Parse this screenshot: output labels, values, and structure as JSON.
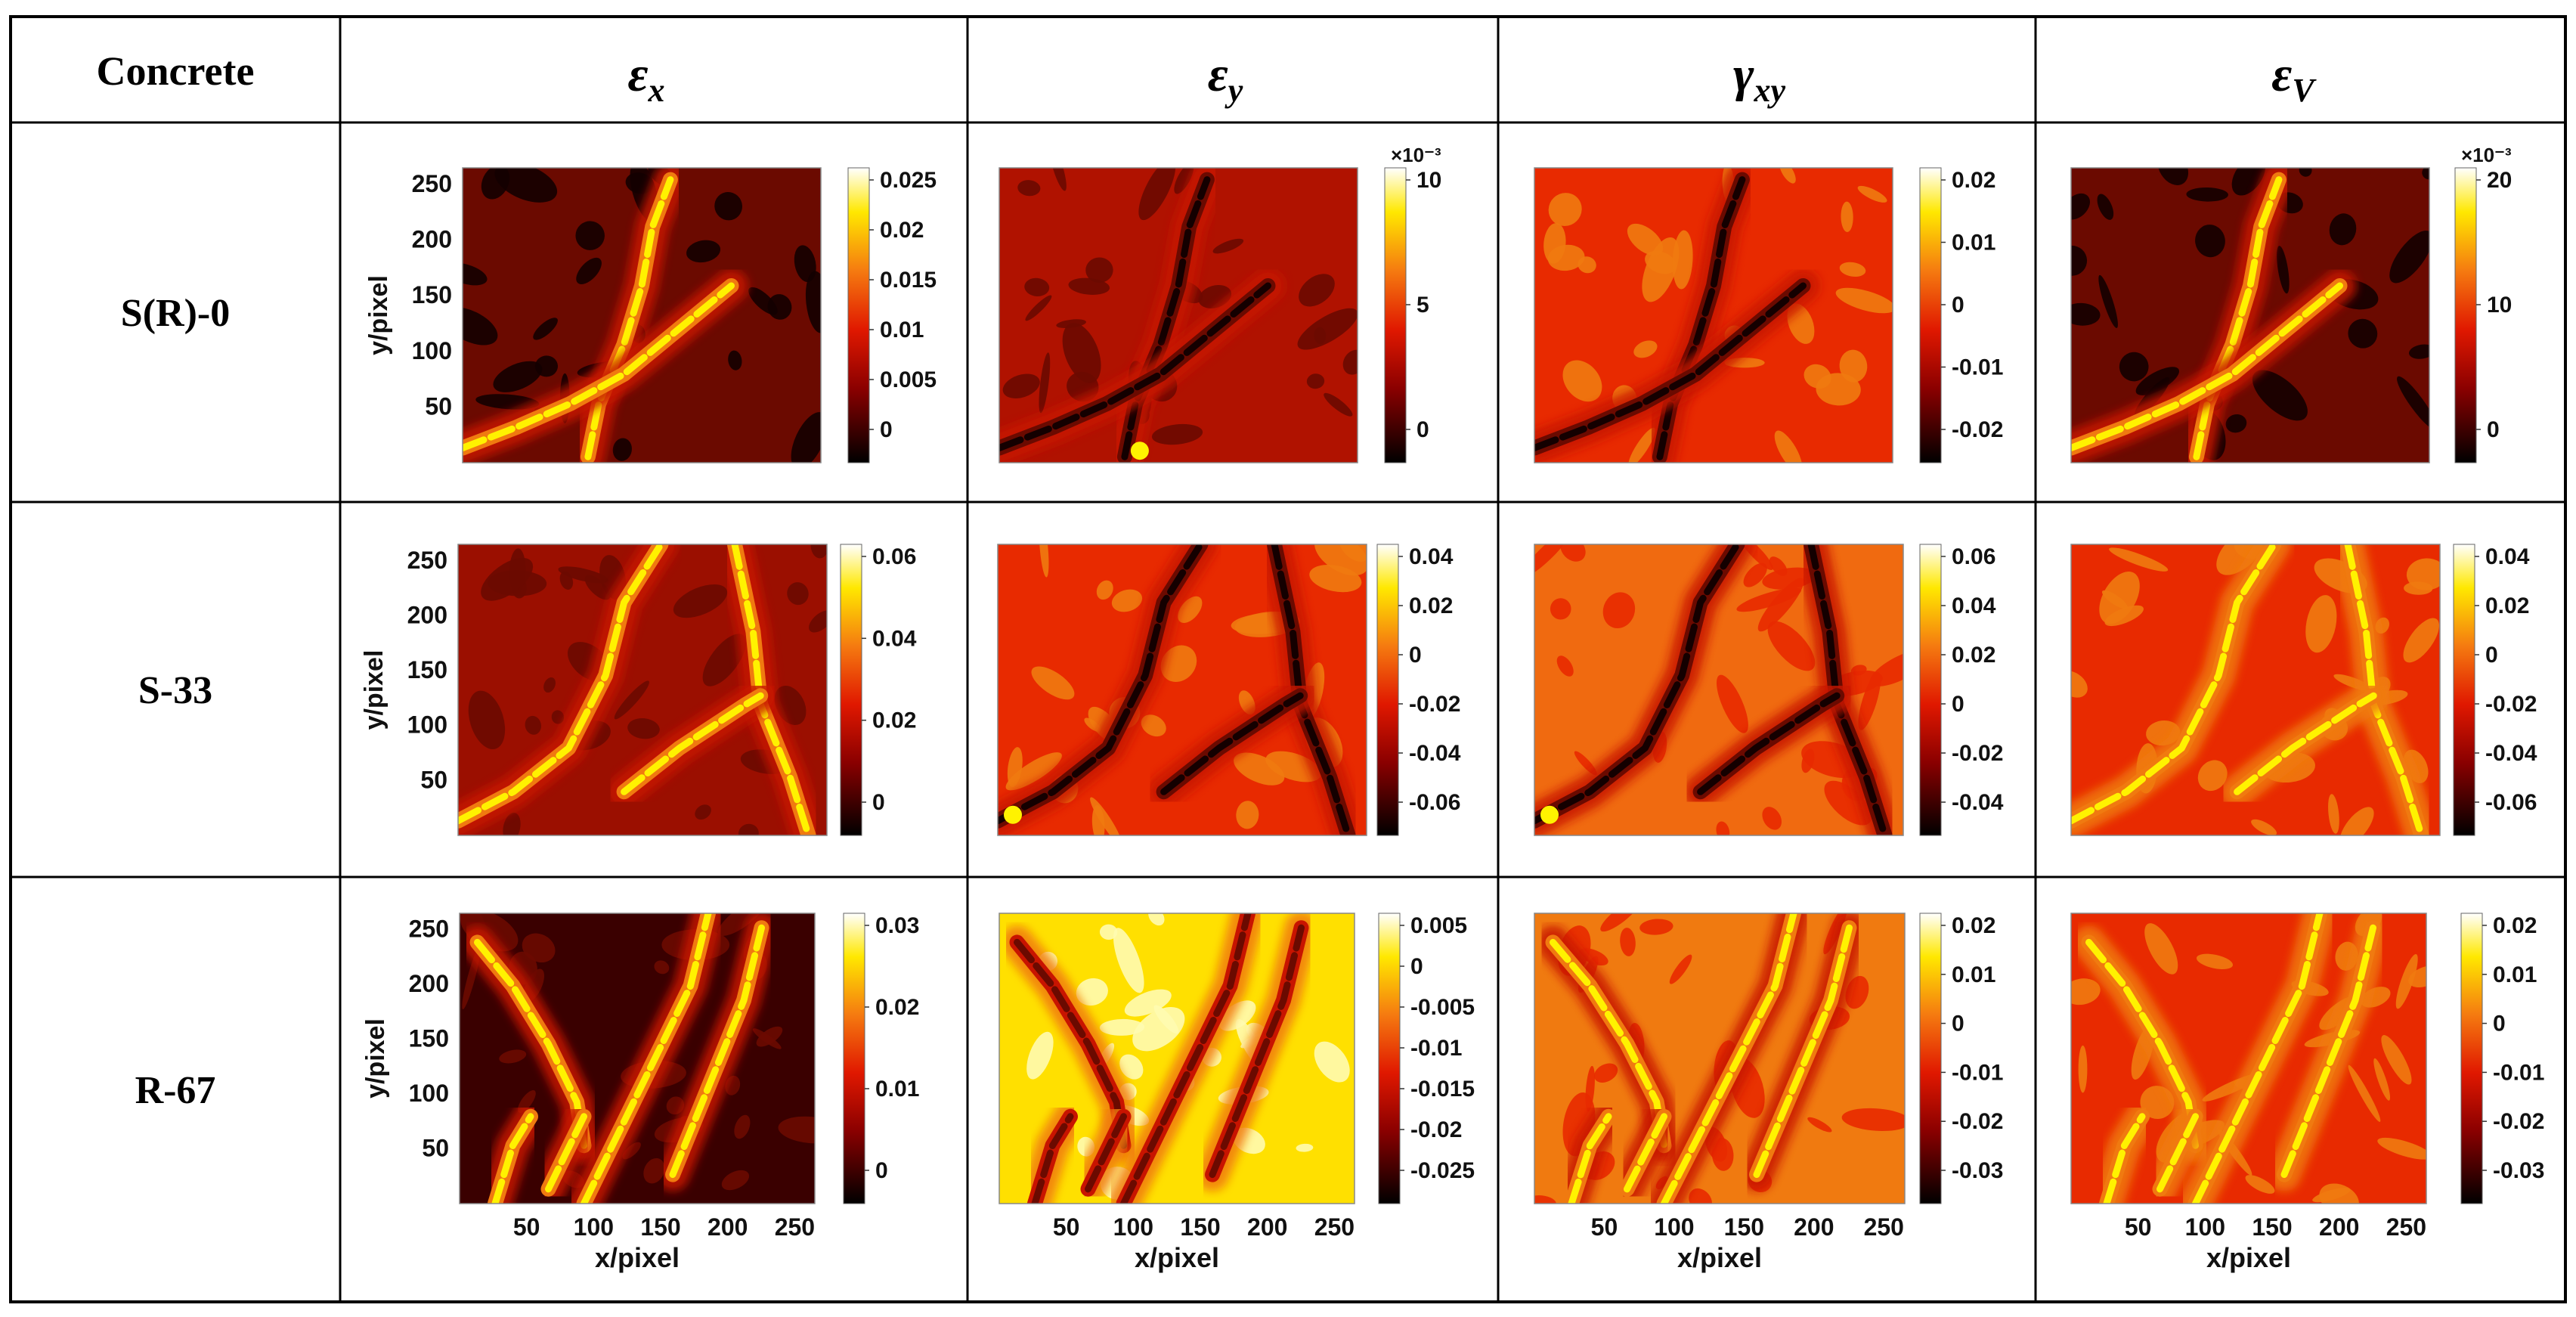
{
  "table": {
    "header": {
      "first_col": "Concrete",
      "columns": [
        {
          "sym": "ε",
          "sub": "x"
        },
        {
          "sym": "ε",
          "sub": "y"
        },
        {
          "sym": "γ",
          "sub": "xy"
        },
        {
          "sym": "ε",
          "sub": "V"
        }
      ]
    },
    "rows": [
      {
        "label": "S(R)-0"
      },
      {
        "label": "S-33"
      },
      {
        "label": "R-67"
      }
    ]
  },
  "axes": {
    "y_label": "y/pixel",
    "x_label": "x/pixel",
    "y_ticks": [
      "50",
      "100",
      "150",
      "200",
      "250"
    ],
    "x_ticks": [
      "50",
      "100",
      "150",
      "200",
      "250"
    ]
  },
  "colorbars": [
    [
      {
        "ticks": [
          "0.025",
          "0.02",
          "0.015",
          "0.01",
          "0.005",
          "0"
        ],
        "multiplier": ""
      },
      {
        "ticks": [
          "10",
          "5",
          "0"
        ],
        "multiplier": "×10⁻³"
      },
      {
        "ticks": [
          "0.02",
          "0.01",
          "0",
          "-0.01",
          "-0.02"
        ],
        "multiplier": ""
      },
      {
        "ticks": [
          "20",
          "10",
          "0"
        ],
        "multiplier": "×10⁻³"
      }
    ],
    [
      {
        "ticks": [
          "0.06",
          "0.04",
          "0.02",
          "0"
        ],
        "multiplier": ""
      },
      {
        "ticks": [
          "0.04",
          "0.02",
          "0",
          "-0.02",
          "-0.04",
          "-0.06"
        ],
        "multiplier": ""
      },
      {
        "ticks": [
          "0.06",
          "0.04",
          "0.02",
          "0",
          "-0.02",
          "-0.04"
        ],
        "multiplier": ""
      },
      {
        "ticks": [
          "0.04",
          "0.02",
          "0",
          "-0.02",
          "-0.04",
          "-0.06"
        ],
        "multiplier": ""
      }
    ],
    [
      {
        "ticks": [
          "0.03",
          "0.02",
          "0.01",
          "0"
        ],
        "multiplier": ""
      },
      {
        "ticks": [
          "0.005",
          "0",
          "-0.005",
          "-0.01",
          "-0.015",
          "-0.02",
          "-0.025"
        ],
        "multiplier": ""
      },
      {
        "ticks": [
          "0.02",
          "0.01",
          "0",
          "-0.01",
          "-0.02",
          "-0.03"
        ],
        "multiplier": ""
      },
      {
        "ticks": [
          "0.02",
          "0.01",
          "0",
          "-0.01",
          "-0.02",
          "-0.03"
        ],
        "multiplier": ""
      }
    ]
  ],
  "colors": {
    "dark_red": "#6b0a00",
    "red": "#c81400",
    "bright_red": "#e82a00",
    "orange": "#f07a10",
    "yellow": "#fff200",
    "pale_yellow": "#fffbb0",
    "black": "#140000"
  }
}
